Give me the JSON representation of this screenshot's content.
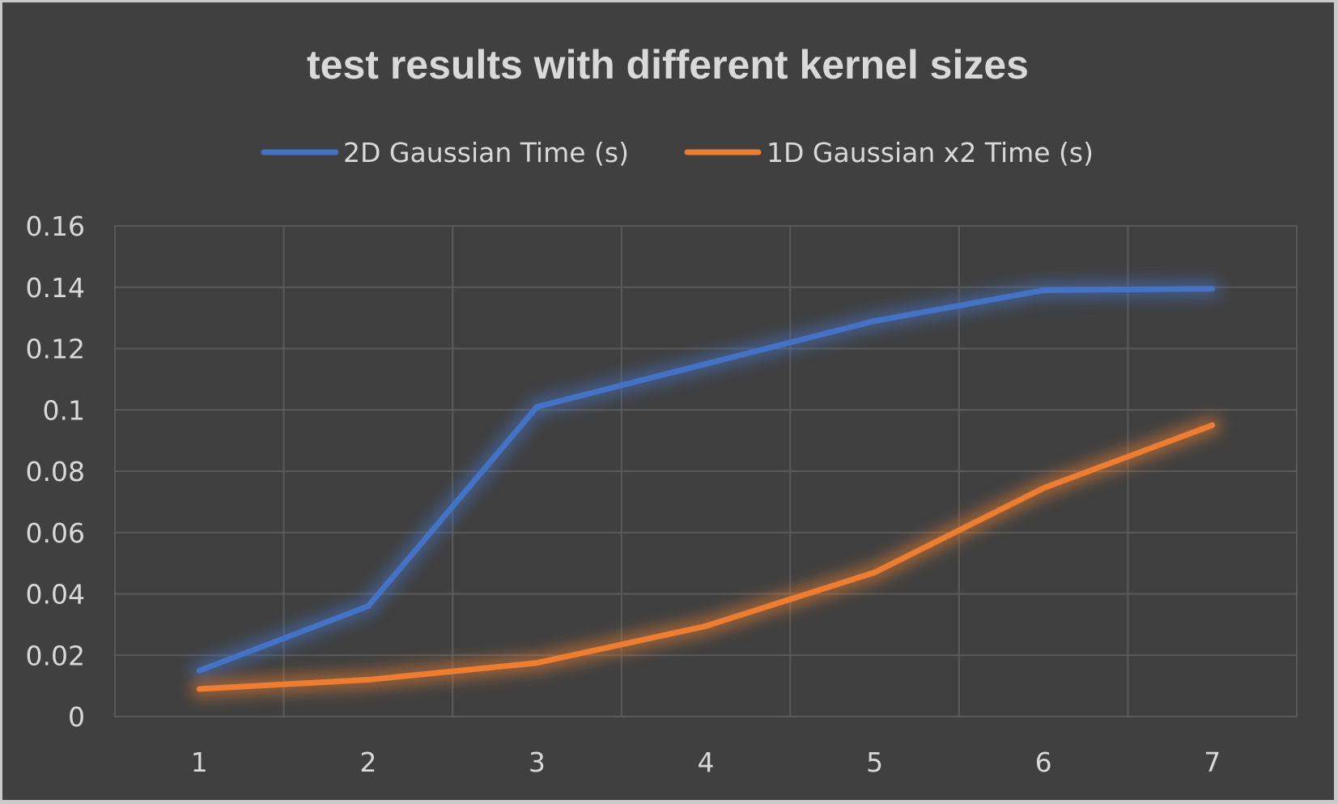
{
  "chart_data": {
    "type": "line",
    "title": "test results with different kernel sizes",
    "x": [
      1,
      2,
      3,
      4,
      5,
      6,
      7
    ],
    "x_tick_labels": [
      "1",
      "2",
      "3",
      "4",
      "5",
      "6",
      "7"
    ],
    "y_tick_labels": [
      "0",
      "0.02",
      "0.04",
      "0.06",
      "0.08",
      "0.1",
      "0.12",
      "0.14",
      "0.16"
    ],
    "ylim": [
      0,
      0.16
    ],
    "grid": true,
    "legend_position": "top",
    "series": [
      {
        "name": "2D Gaussian Time (s)",
        "color": "#4472c4",
        "values": [
          0.015,
          0.036,
          0.101,
          0.115,
          0.129,
          0.139,
          0.1395
        ]
      },
      {
        "name": "1D Gaussian x2 Time (s)",
        "color": "#ed7d31",
        "values": [
          0.009,
          0.012,
          0.0175,
          0.0295,
          0.047,
          0.0745,
          0.095
        ]
      }
    ]
  }
}
